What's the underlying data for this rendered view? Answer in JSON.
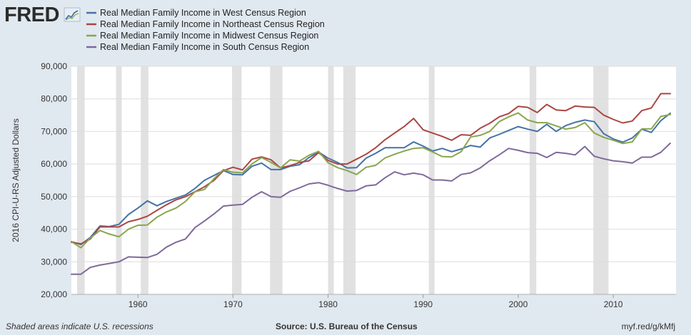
{
  "branding": {
    "logo": "FRED",
    "logo_icon": "trend-line-icon"
  },
  "footer": {
    "note": "Shaded areas indicate U.S. recessions",
    "source": "Source: U.S. Bureau of the Census",
    "url": "myf.red/g/kMfj"
  },
  "chart_data": {
    "type": "line",
    "title": "",
    "xlabel": "",
    "ylabel": "2016 CPI-U-RS Adjusted Dollars",
    "xlim": [
      1953,
      2016.6
    ],
    "ylim": [
      20000,
      90000
    ],
    "x_ticks": [
      1960,
      1970,
      1980,
      1990,
      2000,
      2010
    ],
    "x_tick_labels": [
      "1960",
      "1970",
      "1980",
      "1990",
      "2000",
      "2010"
    ],
    "y_ticks": [
      20000,
      30000,
      40000,
      50000,
      60000,
      70000,
      80000,
      90000
    ],
    "y_tick_labels": [
      "20,000",
      "30,000",
      "40,000",
      "50,000",
      "60,000",
      "70,000",
      "80,000",
      "90,000"
    ],
    "grid": true,
    "legend_position": "top-left",
    "recessions": [
      [
        1953.6,
        1954.4
      ],
      [
        1957.7,
        1958.3
      ],
      [
        1960.3,
        1961.1
      ],
      [
        1969.9,
        1970.9
      ],
      [
        1973.9,
        1975.2
      ],
      [
        1980.0,
        1980.6
      ],
      [
        1981.6,
        1982.9
      ],
      [
        1990.6,
        1991.2
      ],
      [
        2001.2,
        2001.9
      ],
      [
        2007.9,
        2009.5
      ]
    ],
    "x": [
      1953,
      1954,
      1955,
      1956,
      1957,
      1958,
      1959,
      1960,
      1961,
      1962,
      1963,
      1964,
      1965,
      1966,
      1967,
      1968,
      1969,
      1970,
      1971,
      1972,
      1973,
      1974,
      1975,
      1976,
      1977,
      1978,
      1979,
      1980,
      1981,
      1982,
      1983,
      1984,
      1985,
      1986,
      1987,
      1988,
      1989,
      1990,
      1991,
      1992,
      1993,
      1994,
      1995,
      1996,
      1997,
      1998,
      1999,
      2000,
      2001,
      2002,
      2003,
      2004,
      2005,
      2006,
      2007,
      2008,
      2009,
      2010,
      2011,
      2012,
      2013,
      2014,
      2015,
      2016
    ],
    "series": [
      {
        "name": "Real Median Family Income in West Census Region",
        "color": "#4572a7",
        "values": [
          36200,
          35300,
          37500,
          41000,
          40800,
          41500,
          44500,
          46500,
          48700,
          47200,
          48500,
          49500,
          50500,
          52500,
          55000,
          56500,
          58000,
          56800,
          56700,
          59300,
          60300,
          58300,
          58300,
          59300,
          59800,
          62000,
          63700,
          61800,
          60500,
          58800,
          58900,
          61800,
          63300,
          65000,
          65000,
          65000,
          66800,
          65500,
          64000,
          64800,
          63800,
          64600,
          65700,
          65200,
          68000,
          69100,
          70300,
          71500,
          70700,
          70000,
          72200,
          70000,
          71800,
          72800,
          73500,
          73000,
          69300,
          67700,
          66700,
          68000,
          70700,
          69700,
          73300,
          75600
        ]
      },
      {
        "name": "Real Median Family Income in Northeast Census Region",
        "color": "#aa4643",
        "values": [
          36000,
          35500,
          37000,
          40700,
          40700,
          40700,
          42300,
          43000,
          44000,
          45800,
          47500,
          49000,
          50000,
          51500,
          53000,
          55000,
          58000,
          59000,
          58200,
          61500,
          62200,
          61300,
          58800,
          59500,
          60500,
          61000,
          63500,
          61100,
          60000,
          60000,
          61500,
          63000,
          65000,
          67500,
          69500,
          71500,
          74000,
          70500,
          69500,
          68500,
          67300,
          69000,
          68800,
          71000,
          72500,
          74500,
          75500,
          77700,
          77400,
          75800,
          78300,
          76600,
          76400,
          77800,
          77500,
          77400,
          75000,
          73700,
          72600,
          73200,
          76400,
          77200,
          81600,
          81600
        ]
      },
      {
        "name": "Real Median Family Income in Midwest Census Region",
        "color": "#89a54e",
        "values": [
          36200,
          34300,
          37300,
          39600,
          38500,
          37700,
          40000,
          41200,
          41300,
          43700,
          45300,
          46500,
          48500,
          51500,
          52200,
          55500,
          58300,
          57500,
          57300,
          60000,
          62000,
          60500,
          58800,
          61300,
          60900,
          62700,
          63900,
          60400,
          58900,
          58000,
          56800,
          59000,
          59600,
          61900,
          63000,
          64000,
          64800,
          65000,
          63700,
          62300,
          62200,
          63800,
          68300,
          68800,
          70000,
          73000,
          74500,
          75700,
          73500,
          72700,
          72700,
          71700,
          70700,
          71200,
          72700,
          69500,
          68200,
          67300,
          66300,
          66800,
          70800,
          70800,
          74600,
          75200
        ]
      },
      {
        "name": "Real Median Family Income in South Census Region",
        "color": "#80699b",
        "values": [
          26200,
          26200,
          28300,
          29000,
          29500,
          30000,
          31500,
          31400,
          31300,
          32300,
          34500,
          36000,
          37000,
          40500,
          42500,
          44700,
          47100,
          47400,
          47600,
          49800,
          51500,
          50000,
          49800,
          51600,
          52700,
          53900,
          54300,
          53500,
          52500,
          51700,
          51900,
          53300,
          53600,
          55800,
          57600,
          56700,
          57200,
          56700,
          55100,
          55100,
          54800,
          56800,
          57300,
          58800,
          61000,
          62800,
          64800,
          64200,
          63500,
          63300,
          62000,
          63600,
          63300,
          62800,
          65400,
          62400,
          61600,
          61000,
          60700,
          60300,
          62100,
          62100,
          63600,
          66400
        ]
      }
    ]
  }
}
